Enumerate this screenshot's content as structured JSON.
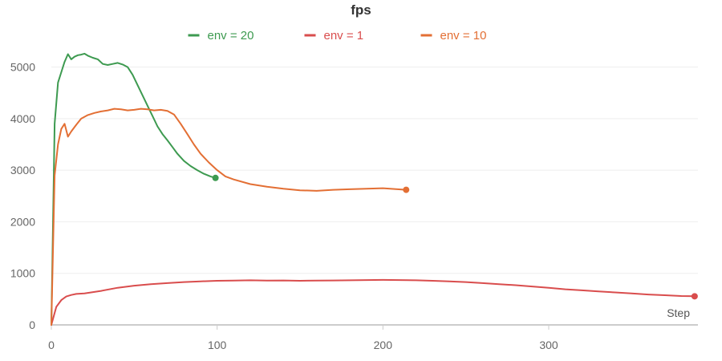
{
  "chart_data": {
    "type": "line",
    "title": "fps",
    "xlabel": "Step",
    "ylabel": "",
    "xlim": [
      0,
      390
    ],
    "ylim": [
      0,
      5600
    ],
    "xticks": [
      0,
      100,
      200,
      300
    ],
    "yticks": [
      0,
      1000,
      2000,
      3000,
      4000,
      5000
    ],
    "grid": true,
    "legend_position": "top",
    "series": [
      {
        "name": "env = 20",
        "color": "#3d9a50",
        "x": [
          0,
          2,
          4,
          6,
          8,
          10,
          12,
          14,
          16,
          18,
          20,
          22,
          25,
          28,
          31,
          34,
          37,
          40,
          43,
          46,
          49,
          52,
          55,
          58,
          61,
          64,
          67,
          70,
          73,
          76,
          80,
          84,
          88,
          92,
          96,
          99
        ],
        "y": [
          0,
          3900,
          4700,
          4900,
          5100,
          5250,
          5150,
          5200,
          5230,
          5240,
          5260,
          5220,
          5180,
          5150,
          5060,
          5040,
          5060,
          5080,
          5050,
          5000,
          4850,
          4650,
          4450,
          4250,
          4050,
          3850,
          3700,
          3580,
          3450,
          3320,
          3180,
          3080,
          3000,
          2930,
          2880,
          2850
        ]
      },
      {
        "name": "env = 1",
        "color": "#d94d4d",
        "x": [
          0,
          3,
          6,
          9,
          12,
          15,
          20,
          30,
          40,
          50,
          60,
          70,
          80,
          90,
          100,
          110,
          120,
          130,
          140,
          150,
          160,
          170,
          180,
          190,
          200,
          210,
          220,
          230,
          240,
          250,
          260,
          270,
          280,
          290,
          300,
          310,
          320,
          330,
          340,
          350,
          360,
          370,
          380,
          388
        ],
        "y": [
          0,
          350,
          480,
          550,
          580,
          600,
          610,
          660,
          720,
          760,
          790,
          810,
          830,
          845,
          855,
          860,
          865,
          860,
          862,
          855,
          858,
          862,
          865,
          870,
          872,
          870,
          865,
          855,
          845,
          830,
          810,
          790,
          770,
          745,
          720,
          690,
          670,
          650,
          630,
          610,
          590,
          575,
          560,
          555
        ]
      },
      {
        "name": "env = 10",
        "color": "#e36f34",
        "x": [
          0,
          2,
          4,
          6,
          8,
          10,
          12,
          15,
          18,
          22,
          26,
          30,
          34,
          38,
          42,
          46,
          50,
          54,
          58,
          62,
          66,
          70,
          74,
          78,
          82,
          86,
          90,
          95,
          100,
          105,
          110,
          120,
          130,
          140,
          150,
          160,
          170,
          180,
          190,
          200,
          214
        ],
        "y": [
          0,
          2900,
          3500,
          3800,
          3900,
          3650,
          3750,
          3880,
          4000,
          4070,
          4110,
          4140,
          4160,
          4190,
          4180,
          4160,
          4170,
          4190,
          4180,
          4160,
          4170,
          4150,
          4080,
          3900,
          3700,
          3500,
          3320,
          3150,
          3000,
          2880,
          2820,
          2730,
          2680,
          2640,
          2610,
          2600,
          2620,
          2630,
          2640,
          2650,
          2620
        ]
      }
    ]
  }
}
